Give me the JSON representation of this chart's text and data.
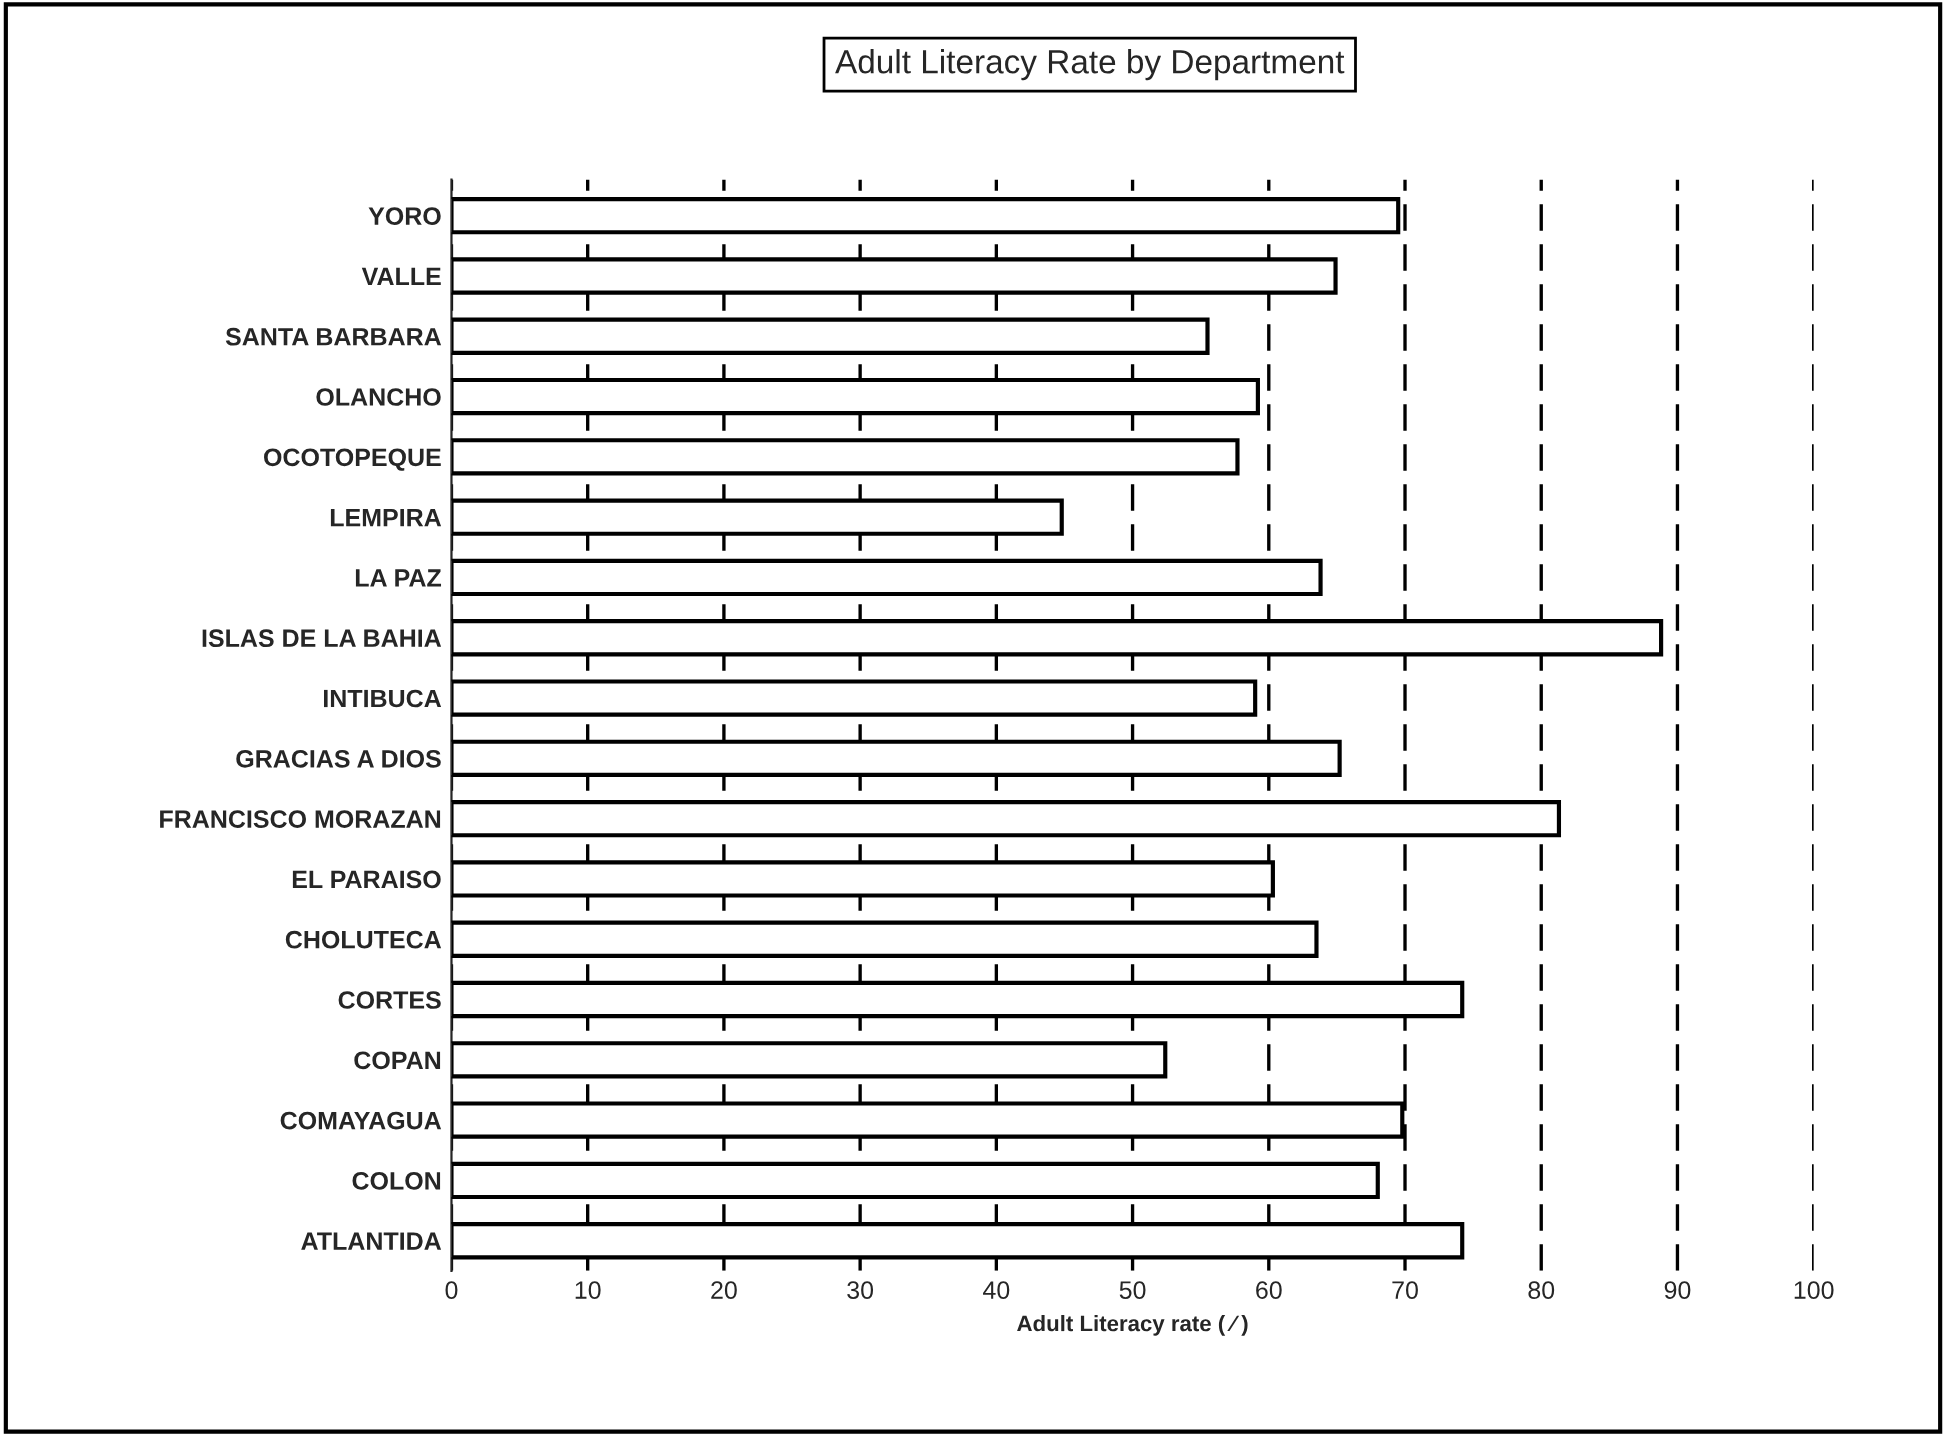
{
  "chart_data": {
    "type": "bar",
    "orientation": "horizontal",
    "title": "Adult Literacy Rate by Department",
    "xlabel": "Adult Literacy rate ( ⁄ )",
    "categories": [
      "YORO",
      "VALLE",
      "SANTA BARBARA",
      "OLANCHO",
      "OCOTOPEQUE",
      "LEMPIRA",
      "LA PAZ",
      "ISLAS DE LA BAHIA",
      "INTIBUCA",
      "GRACIAS A DIOS",
      "FRANCISCO MORAZAN",
      "EL PARAISO",
      "CHOLUTECA",
      "CORTES",
      "COPAN",
      "COMAYAGUA",
      "COLON",
      "ATLANTIDA"
    ],
    "values": [
      69.5,
      64.9,
      55.5,
      59.2,
      57.7,
      44.8,
      63.8,
      88.8,
      59.0,
      65.2,
      81.3,
      60.3,
      63.5,
      74.2,
      52.4,
      69.8,
      68.0,
      74.2
    ],
    "color": "#ffffff",
    "xlim": [
      0,
      100
    ],
    "xticks": [
      0,
      10,
      20,
      30,
      40,
      50,
      60,
      70,
      80,
      90,
      100
    ],
    "grid": "x"
  }
}
